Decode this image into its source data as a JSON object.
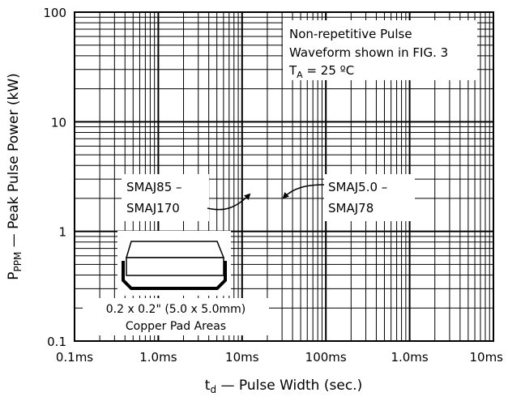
{
  "chart_data": {
    "type": "line",
    "title": "",
    "xlabel_prefix": "t",
    "xlabel_sub": "d",
    "xlabel_rest": " — Pulse Width (sec.)",
    "ylabel_prefix": "P",
    "ylabel_sub": "PPM",
    "ylabel_rest": " — Peak Pulse Power (kW)",
    "x_scale": "log",
    "y_scale": "log",
    "grid": true,
    "xlim": [
      1e-07,
      0.01
    ],
    "ylim": [
      0.1,
      100
    ],
    "x_ticks": [
      1e-07,
      1e-06,
      1e-05,
      0.0001,
      0.001,
      0.01
    ],
    "x_tick_labels": [
      "0.1ms",
      "1.0ms",
      "10ms",
      "100ms",
      "1.0ms",
      "10ms"
    ],
    "y_ticks": [
      0.1,
      1,
      10,
      100
    ],
    "y_tick_labels": [
      "0.1",
      "1",
      "10",
      "100"
    ],
    "series": [],
    "annotations": {
      "conditions": [
        "Non-repetitive Pulse",
        "Waveform shown in FIG. 3"
      ],
      "temp_prefix": "T",
      "temp_sub": "A",
      "temp_rest": " = 25 ºC",
      "left_series_label": [
        "SMAJ85 –",
        "SMAJ170"
      ],
      "right_series_label": [
        "SMAJ5.0 –",
        "SMAJ78"
      ],
      "pad_label": [
        "0.2 x 0.2\" (5.0 x 5.0mm)",
        "Copper Pad Areas"
      ]
    }
  }
}
